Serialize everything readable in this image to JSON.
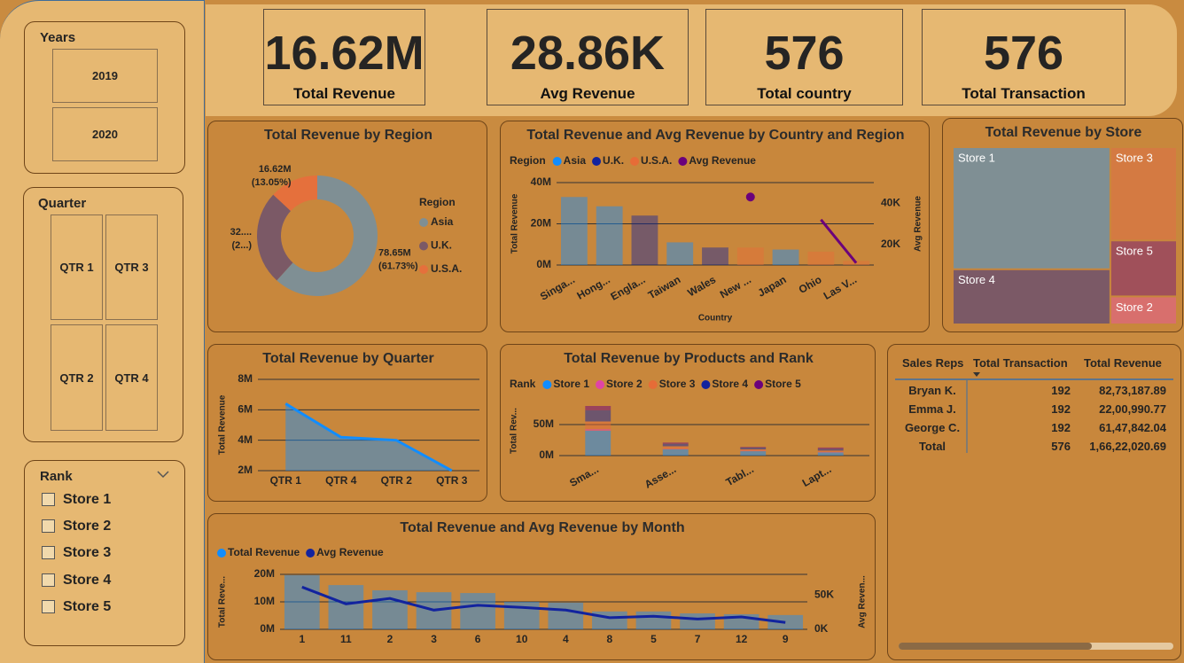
{
  "slicers": {
    "years": {
      "title": "Years",
      "items": [
        "2019",
        "2020"
      ]
    },
    "quarter": {
      "title": "Quarter",
      "items": [
        "QTR 1",
        "QTR 3",
        "QTR 2",
        "QTR 4"
      ]
    },
    "rank": {
      "title": "Rank",
      "items": [
        "Store 1",
        "Store 2",
        "Store 3",
        "Store 4",
        "Store 5"
      ]
    }
  },
  "kpis": [
    {
      "value": "16.62M",
      "label": "Total Revenue"
    },
    {
      "value": "28.86K",
      "label": "Avg Revenue"
    },
    {
      "value": "576",
      "label": "Total country"
    },
    {
      "value": "576",
      "label": "Total Transaction"
    }
  ],
  "chart_data": [
    {
      "type": "donut",
      "title": "Total Revenue by Region",
      "legend_title": "Region",
      "categories": [
        "Asia",
        "U.K.",
        "U.S.A."
      ],
      "values": [
        78.65,
        32.14,
        16.62
      ],
      "value_labels": [
        "78.65M",
        "32....",
        "16.62M"
      ],
      "percent_labels": [
        "(61.73%)",
        "(2...)",
        "(13.05%)"
      ],
      "colors": [
        "#7f8f94",
        "#7b5966",
        "#e5703c"
      ]
    },
    {
      "type": "combo",
      "title": "Total Revenue and Avg Revenue by Country and Region",
      "legend_title": "Region",
      "x_label": "Country",
      "y_label": "Total Revenue",
      "y2_label": "Avg Revenue",
      "categories": [
        "Singa...",
        "Hong...",
        "Engla...",
        "Taiwan",
        "Wales",
        "New ...",
        "Japan",
        "Ohio",
        "Las V..."
      ],
      "series": [
        {
          "name": "Asia",
          "color": "#118dff",
          "values": [
            33,
            28.5,
            null,
            11,
            null,
            null,
            7.5,
            null,
            null
          ]
        },
        {
          "name": "U.K.",
          "color": "#12239e",
          "values": [
            null,
            null,
            24,
            null,
            8.5,
            null,
            null,
            null,
            null
          ]
        },
        {
          "name": "U.S.A.",
          "color": "#e66c37",
          "values": [
            null,
            null,
            null,
            null,
            null,
            8.5,
            null,
            6.5,
            2
          ]
        },
        {
          "name": "Avg Revenue",
          "color": "#6b007b",
          "axis": "y2",
          "values": [
            null,
            null,
            null,
            null,
            null,
            43,
            null,
            32,
            11
          ]
        }
      ],
      "ylim": [
        0,
        40
      ],
      "yticks": [
        {
          "value": 0,
          "label": "0M"
        },
        {
          "value": 20,
          "label": "20M"
        },
        {
          "value": 40,
          "label": "40M"
        }
      ],
      "y2lim": [
        10,
        50
      ],
      "y2ticks": [
        {
          "value": 20,
          "label": "20K"
        },
        {
          "value": 40,
          "label": "40K"
        }
      ],
      "grid": true
    },
    {
      "type": "treemap",
      "title": "Total Revenue by Store",
      "categories": [
        "Store 1",
        "Store 4",
        "Store 3",
        "Store 5",
        "Store 2"
      ],
      "values": [
        62,
        28,
        20,
        12,
        6
      ],
      "colors": [
        "#7f8f94",
        "#7b5966",
        "#d47a42",
        "#a0505a",
        "#d86f6d"
      ]
    },
    {
      "type": "area",
      "title": "Total Revenue by Quarter",
      "y_label": "Total Revenue",
      "categories": [
        "QTR 1",
        "QTR 4",
        "QTR 2",
        "QTR 3"
      ],
      "values": [
        6.4,
        4.2,
        4.0,
        2.0
      ],
      "color": "#118dff",
      "ylim": [
        2,
        8
      ],
      "yticks": [
        {
          "value": 2,
          "label": "2M"
        },
        {
          "value": 4,
          "label": "4M"
        },
        {
          "value": 6,
          "label": "6M"
        },
        {
          "value": 8,
          "label": "8M"
        }
      ],
      "grid": true
    },
    {
      "type": "stacked_bar",
      "title": "Total Revenue by Products and Rank",
      "legend_title": "Rank",
      "y_label": "Total Rev...",
      "categories": [
        "Sma...",
        "Asse...",
        "Tabl...",
        "Lapt..."
      ],
      "series": [
        {
          "name": "Store 1",
          "color": "#118dff",
          "values": [
            40,
            10,
            7,
            5
          ]
        },
        {
          "name": "Store 2",
          "color": "#e044a7",
          "values": [
            3,
            1,
            1,
            1
          ]
        },
        {
          "name": "Store 3",
          "color": "#e66c37",
          "values": [
            12,
            4,
            2,
            2
          ]
        },
        {
          "name": "Store 4",
          "color": "#12239e",
          "values": [
            18,
            4,
            3,
            3
          ]
        },
        {
          "name": "Store 5",
          "color": "#6b007b",
          "values": [
            7,
            2,
            1,
            2
          ]
        }
      ],
      "ylim": [
        0,
        80
      ],
      "yticks": [
        {
          "value": 0,
          "label": "0M"
        },
        {
          "value": 50,
          "label": "50M"
        }
      ],
      "grid": true
    },
    {
      "type": "combo",
      "title": "Total Revenue and Avg Revenue by Month",
      "y_label": "Total Reve...",
      "y2_label": "Avg Reven...",
      "categories": [
        "1",
        "11",
        "2",
        "3",
        "6",
        "10",
        "4",
        "8",
        "5",
        "7",
        "12",
        "9"
      ],
      "series": [
        {
          "name": "Total Revenue",
          "color": "#118dff",
          "values": [
            19.7,
            16.1,
            14.2,
            13.5,
            13.2,
            10.0,
            9.7,
            6.5,
            6.5,
            5.8,
            5.5,
            5.2
          ]
        },
        {
          "name": "Avg Revenue",
          "color": "#12239e",
          "axis": "y2",
          "values": [
            61.5,
            37,
            45,
            28,
            35,
            32,
            28,
            17,
            19,
            15,
            18,
            10
          ]
        }
      ],
      "ylim": [
        0,
        20
      ],
      "yticks": [
        {
          "value": 0,
          "label": "0M"
        },
        {
          "value": 10,
          "label": "10M"
        },
        {
          "value": 20,
          "label": "20M"
        }
      ],
      "y2lim": [
        0,
        80
      ],
      "y2ticks": [
        {
          "value": 0,
          "label": "0K"
        },
        {
          "value": 50,
          "label": "50K"
        }
      ],
      "grid": true
    }
  ],
  "table": {
    "headers": [
      "Sales Reps",
      "Total Transaction",
      "Total Revenue"
    ],
    "rows": [
      [
        "Bryan K.",
        "192",
        "82,73,187.89"
      ],
      [
        "Emma J.",
        "192",
        "22,00,990.77"
      ],
      [
        "George C.",
        "192",
        "61,47,842.04"
      ]
    ],
    "total": [
      "Total",
      "576",
      "1,66,22,020.69"
    ]
  }
}
